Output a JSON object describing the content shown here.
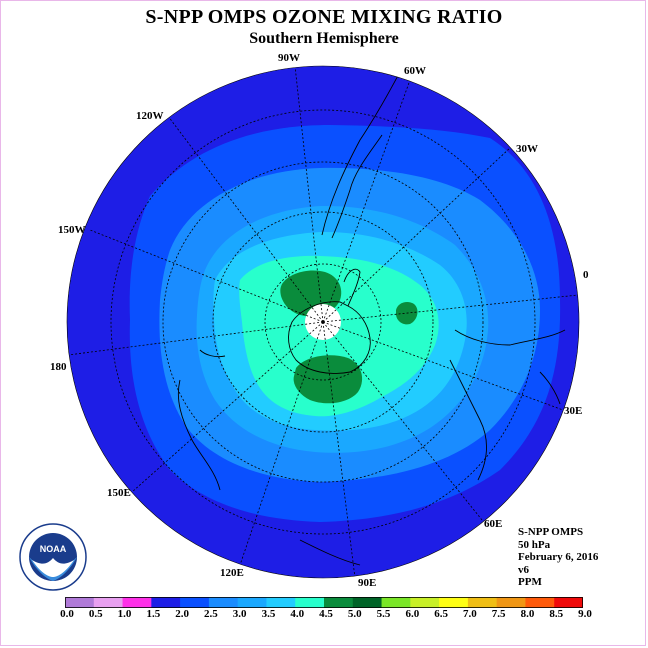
{
  "title": "S-NPP OMPS OZONE MIXING RATIO",
  "subtitle": "Southern Hemisphere",
  "info": {
    "instrument": "S-NPP OMPS",
    "level": "50 hPa",
    "date": "February 6, 2016",
    "version": "v6",
    "units": "PPM"
  },
  "longitude_labels": [
    "90W",
    "60W",
    "30W",
    "0",
    "30E",
    "60E",
    "90E",
    "120E",
    "150E",
    "180",
    "150W",
    "120W"
  ],
  "colorbar": {
    "ticks": [
      "0.0",
      "0.5",
      "1.0",
      "1.5",
      "2.0",
      "2.5",
      "3.0",
      "3.5",
      "4.0",
      "4.5",
      "5.0",
      "5.5",
      "6.0",
      "6.5",
      "7.0",
      "7.5",
      "8.0",
      "8.5",
      "9.0"
    ],
    "colors": [
      "#b07ad8",
      "#e8a0f0",
      "#ff30e8",
      "#1e1ee6",
      "#0a50ff",
      "#1a8cff",
      "#1aa8ff",
      "#22ccff",
      "#28ffcc",
      "#0a8c3c",
      "#006428",
      "#7ae628",
      "#c8f028",
      "#ffff14",
      "#f0be14",
      "#f09614",
      "#ff5a0a",
      "#f00a0a",
      "#8c5a3c"
    ]
  },
  "logo": {
    "text": "NOAA",
    "ring_text": "NATIONAL OCEANIC AND ATMOSPHERIC ADMINISTRATION · U.S. DEPARTMENT OF COMMERCE"
  }
}
